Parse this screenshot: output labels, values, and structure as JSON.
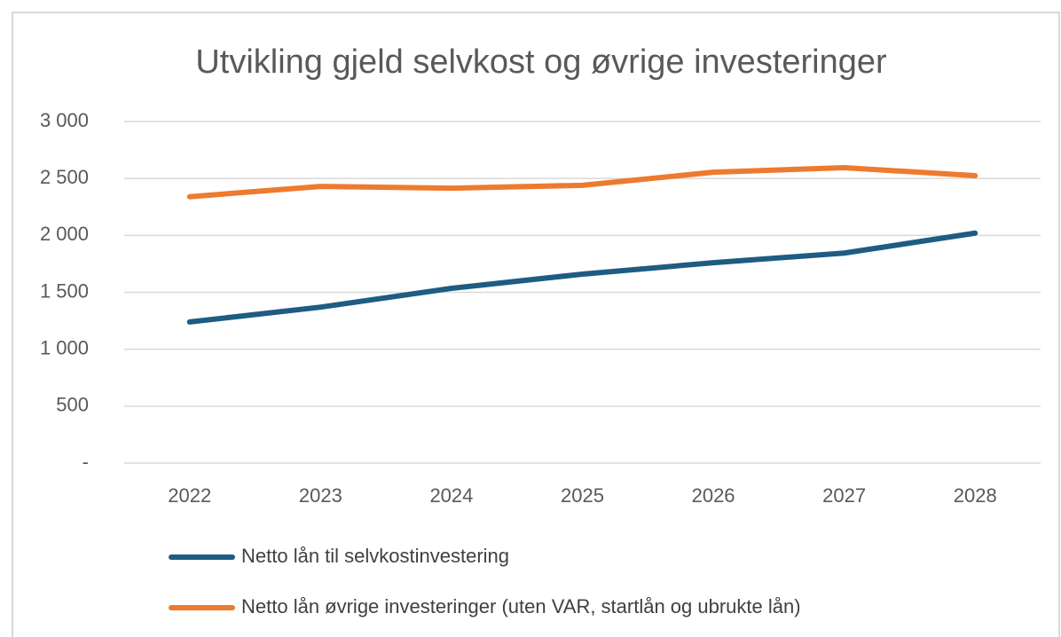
{
  "chart_data": {
    "type": "line",
    "title": "Utvikling gjeld selvkost og øvrige investeringer",
    "categories": [
      "2022",
      "2023",
      "2024",
      "2025",
      "2026",
      "2027",
      "2028"
    ],
    "series": [
      {
        "name": "Netto lån til selvkostinvestering",
        "color": "#1f5c82",
        "values": [
          1240,
          1370,
          1535,
          1660,
          1760,
          1845,
          2020
        ]
      },
      {
        "name": "Netto lån øvrige investeringer (uten VAR, startlån og ubrukte lån)",
        "color": "#ed7b2f",
        "values": [
          2340,
          2430,
          2415,
          2440,
          2555,
          2595,
          2525
        ]
      }
    ],
    "ylim": [
      0,
      3000
    ],
    "yticks": [
      {
        "value": 0,
        "label": "-"
      },
      500,
      {
        "value": 1000,
        "label": "1 000"
      },
      {
        "value": 1500,
        "label": "1 500"
      },
      {
        "value": 2000,
        "label": "2 000"
      },
      {
        "value": 2500,
        "label": "2 500"
      },
      {
        "value": 3000,
        "label": "3 000"
      }
    ],
    "grid": true,
    "legend": "bottom"
  }
}
